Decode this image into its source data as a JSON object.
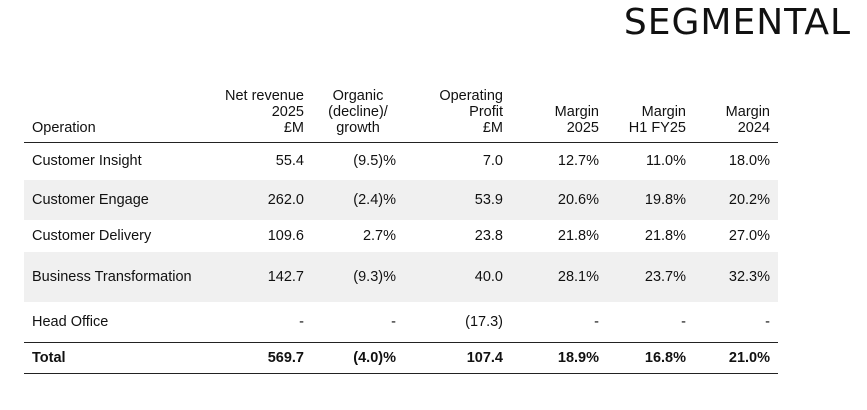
{
  "title": "SEGMENTAL",
  "columns": [
    {
      "line1": "Operation",
      "line2": "",
      "line3": ""
    },
    {
      "line1": "Net revenue",
      "line2": "2025",
      "line3": "£M"
    },
    {
      "line1": "Organic",
      "line2": "(decline)/",
      "line3": "growth"
    },
    {
      "line1": "Operating",
      "line2": "Profit",
      "line3": "£M"
    },
    {
      "line1": "Margin",
      "line2": "2025",
      "line3": ""
    },
    {
      "line1": "Margin",
      "line2": "H1 FY25",
      "line3": ""
    },
    {
      "line1": "Margin",
      "line2": "2024",
      "line3": ""
    }
  ],
  "rows": [
    {
      "operation": "Customer Insight",
      "net_revenue": "55.4",
      "organic": "(9.5)%",
      "op_profit": "7.0",
      "margin_2025": "12.7%",
      "margin_h1": "11.0%",
      "margin_2024": "18.0%"
    },
    {
      "operation": "Customer Engage",
      "net_revenue": "262.0",
      "organic": "(2.4)%",
      "op_profit": "53.9",
      "margin_2025": "20.6%",
      "margin_h1": "19.8%",
      "margin_2024": "20.2%"
    },
    {
      "operation": "Customer Delivery",
      "net_revenue": "109.6",
      "organic": "2.7%",
      "op_profit": "23.8",
      "margin_2025": "21.8%",
      "margin_h1": "21.8%",
      "margin_2024": "27.0%"
    },
    {
      "operation": "Business Transformation",
      "net_revenue": "142.7",
      "organic": "(9.3)%",
      "op_profit": "40.0",
      "margin_2025": "28.1%",
      "margin_h1": "23.7%",
      "margin_2024": "32.3%"
    },
    {
      "operation": "Head Office",
      "net_revenue": "-",
      "organic": "-",
      "op_profit": "(17.3)",
      "margin_2025": "-",
      "margin_h1": "-",
      "margin_2024": "-"
    }
  ],
  "total": {
    "operation": "Total",
    "net_revenue": "569.7",
    "organic": "(4.0)%",
    "op_profit": "107.4",
    "margin_2025": "18.9%",
    "margin_h1": "16.8%",
    "margin_2024": "21.0%"
  }
}
